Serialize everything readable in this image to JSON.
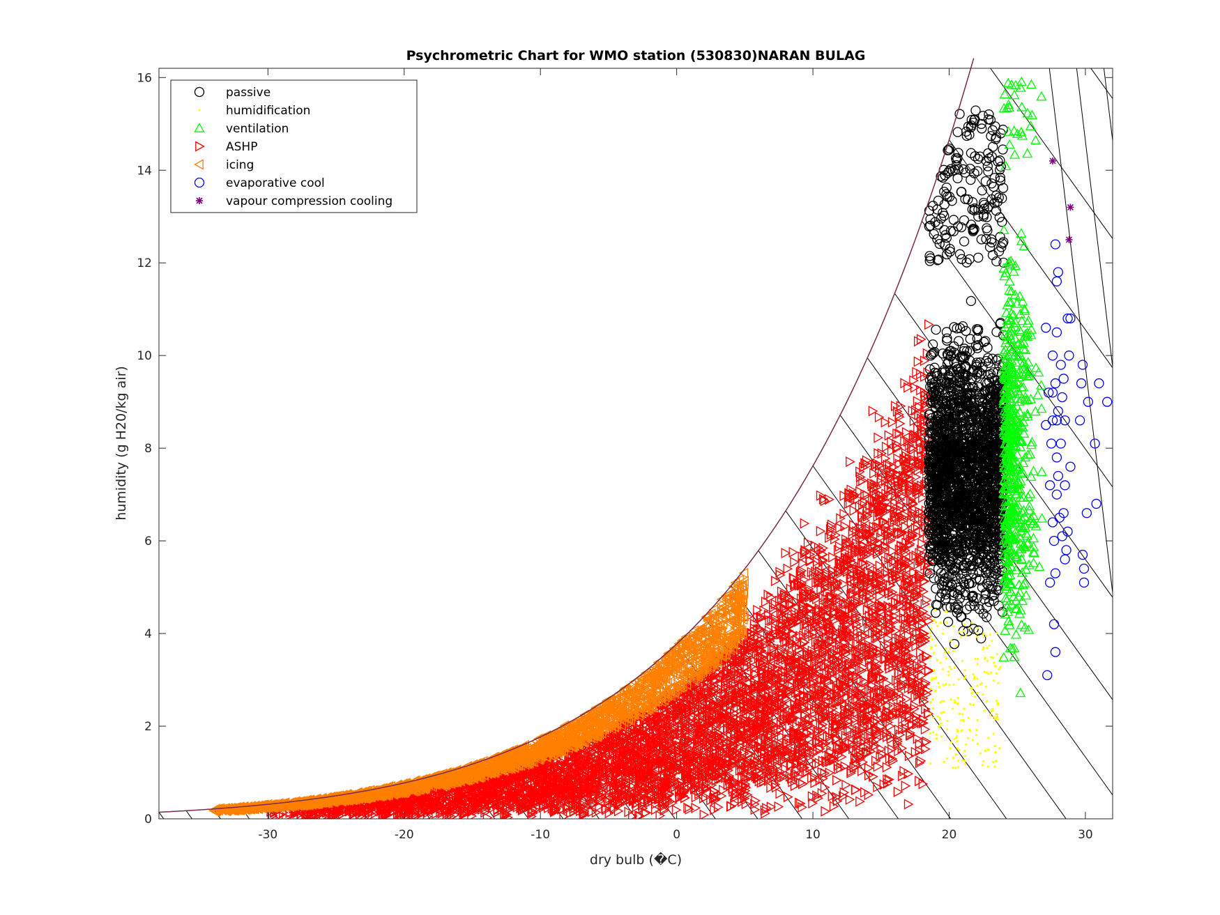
{
  "chart_data": {
    "type": "scatter",
    "title": "Psychrometric Chart for WMO station (530830)NARAN BULAG",
    "xlabel": "dry bulb (�C)",
    "ylabel": "humidity (g H20/kg air)",
    "xlim": [
      -38,
      32
    ],
    "ylim": [
      0,
      16.2
    ],
    "xticks": [
      -30,
      -20,
      -10,
      0,
      10,
      20,
      30
    ],
    "yticks": [
      0,
      2,
      4,
      6,
      8,
      10,
      12,
      14,
      16
    ],
    "legend_position": "top-left",
    "series": [
      {
        "name": "passive",
        "marker": "circle",
        "color": "#000000",
        "regions": [
          [
            18.5,
            24,
            2.8,
            15.3
          ]
        ]
      },
      {
        "name": "humidification",
        "marker": "dot",
        "color": "#ffff00",
        "regions": [
          [
            18.5,
            24,
            1.1,
            4.6
          ]
        ]
      },
      {
        "name": "ventilation",
        "marker": "triangle-up",
        "color": "#00ff00",
        "regions": [
          [
            24,
            27,
            1.8,
            16.2
          ],
          [
            24,
            25,
            14,
            16.2
          ]
        ]
      },
      {
        "name": "ASHP",
        "marker": "triangle-right",
        "color": "#ff0000",
        "regions": [
          [
            -30,
            18.5,
            0,
            13.2
          ]
        ]
      },
      {
        "name": "icing",
        "marker": "triangle-left",
        "color": "#ff8000",
        "regions": [
          [
            -35,
            5,
            0,
            5.5
          ]
        ]
      },
      {
        "name": "evaporative cool",
        "marker": "circle",
        "color": "#0000ff",
        "points": [
          [
            27.8,
            12.4
          ],
          [
            28,
            11.8
          ],
          [
            27.9,
            11.6
          ],
          [
            28.7,
            10.8
          ],
          [
            28.9,
            10.8
          ],
          [
            27.1,
            10.6
          ],
          [
            27.9,
            10.5
          ],
          [
            27.6,
            10
          ],
          [
            28.8,
            10
          ],
          [
            29.8,
            9.8
          ],
          [
            28.2,
            9.8
          ],
          [
            28.4,
            9.5
          ],
          [
            27.8,
            9.4
          ],
          [
            31.0,
            9.4
          ],
          [
            27.3,
            9.2
          ],
          [
            27.6,
            9.2
          ],
          [
            29.7,
            9.4
          ],
          [
            28.3,
            9.1
          ],
          [
            31.6,
            9.0
          ],
          [
            30.2,
            9.0
          ],
          [
            28.0,
            8.8
          ],
          [
            27.6,
            8.6
          ],
          [
            27.9,
            8.6
          ],
          [
            28.5,
            8.6
          ],
          [
            29.6,
            8.6
          ],
          [
            27.1,
            8.5
          ],
          [
            27.5,
            8.1
          ],
          [
            28.2,
            8.1
          ],
          [
            30.7,
            8.1
          ],
          [
            27.9,
            7.8
          ],
          [
            28.9,
            7.6
          ],
          [
            28.0,
            7.4
          ],
          [
            28.5,
            7.2
          ],
          [
            27.4,
            7.2
          ],
          [
            27.9,
            7.0
          ],
          [
            30.1,
            6.6
          ],
          [
            30.8,
            6.8
          ],
          [
            28.4,
            6.6
          ],
          [
            28.1,
            6.5
          ],
          [
            27.6,
            6.4
          ],
          [
            28.7,
            6.2
          ],
          [
            28.3,
            6.1
          ],
          [
            27.7,
            6.0
          ],
          [
            28.6,
            5.8
          ],
          [
            29.8,
            5.7
          ],
          [
            28.5,
            5.6
          ],
          [
            27.8,
            5.3
          ],
          [
            29.9,
            5.4
          ],
          [
            27.4,
            5.1
          ],
          [
            29.9,
            5.1
          ],
          [
            27.7,
            4.2
          ],
          [
            27.8,
            3.6
          ],
          [
            27.2,
            3.1
          ]
        ]
      },
      {
        "name": "vapour compression cooling",
        "marker": "asterisk",
        "color": "#800080",
        "points": [
          [
            27.6,
            14.2
          ],
          [
            28.9,
            13.2
          ],
          [
            28.8,
            12.5
          ]
        ]
      }
    ]
  }
}
